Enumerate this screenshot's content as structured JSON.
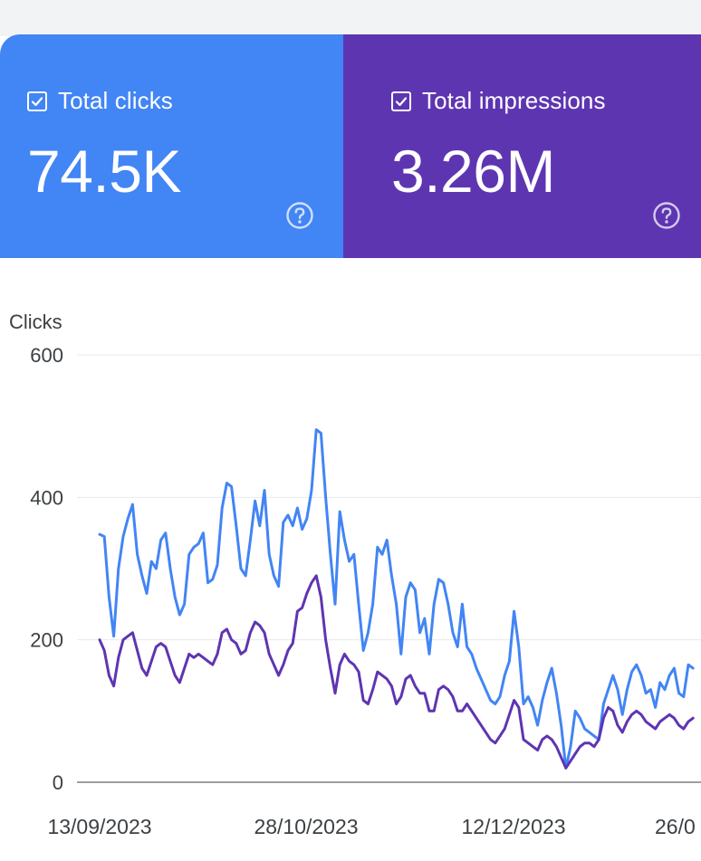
{
  "cards": [
    {
      "label": "Total clicks",
      "value": "74.5K",
      "color": "#4285f4"
    },
    {
      "label": "Total impressions",
      "value": "3.26M",
      "color": "#5e35b1"
    }
  ],
  "chart_data": {
    "type": "line",
    "ylabel": "Clicks",
    "ylim": [
      0,
      600
    ],
    "yticks": [
      "0",
      "200",
      "400",
      "600"
    ],
    "xticks": [
      "13/09/2023",
      "28/10/2023",
      "12/12/2023",
      "26/0"
    ],
    "series": [
      {
        "color": "#4285f4",
        "values": [
          348,
          345,
          260,
          205,
          300,
          345,
          370,
          390,
          320,
          290,
          265,
          310,
          300,
          340,
          350,
          300,
          260,
          235,
          250,
          320,
          330,
          335,
          350,
          280,
          285,
          305,
          385,
          420,
          415,
          360,
          300,
          290,
          340,
          395,
          360,
          410,
          320,
          290,
          275,
          365,
          375,
          360,
          385,
          355,
          370,
          410,
          495,
          490,
          400,
          320,
          250,
          380,
          340,
          310,
          320,
          250,
          185,
          210,
          250,
          330,
          320,
          340,
          290,
          250,
          180,
          260,
          280,
          270,
          210,
          230,
          180,
          250,
          285,
          280,
          250,
          210,
          190,
          250,
          190,
          180,
          160,
          145,
          130,
          115,
          110,
          120,
          150,
          170,
          240,
          190,
          110,
          120,
          105,
          80,
          115,
          140,
          160,
          125,
          80,
          20,
          50,
          100,
          90,
          75,
          70,
          65,
          60,
          110,
          130,
          150,
          130,
          95,
          130,
          155,
          165,
          150,
          125,
          130,
          105,
          140,
          130,
          150,
          160,
          125,
          120,
          165,
          160
        ]
      },
      {
        "color": "#5e35b1",
        "values": [
          200,
          185,
          150,
          135,
          175,
          200,
          205,
          210,
          185,
          160,
          150,
          170,
          190,
          195,
          190,
          170,
          150,
          140,
          160,
          180,
          175,
          180,
          175,
          170,
          165,
          180,
          210,
          215,
          200,
          195,
          180,
          185,
          210,
          225,
          220,
          210,
          180,
          165,
          150,
          165,
          185,
          195,
          240,
          245,
          265,
          280,
          290,
          260,
          200,
          160,
          125,
          165,
          180,
          170,
          165,
          155,
          115,
          110,
          130,
          155,
          150,
          145,
          135,
          110,
          120,
          145,
          150,
          135,
          125,
          125,
          100,
          100,
          130,
          135,
          130,
          120,
          100,
          100,
          110,
          100,
          90,
          80,
          70,
          60,
          55,
          65,
          75,
          95,
          115,
          105,
          60,
          55,
          50,
          45,
          60,
          65,
          60,
          50,
          35,
          20,
          30,
          40,
          50,
          55,
          55,
          50,
          60,
          90,
          105,
          100,
          80,
          70,
          85,
          95,
          100,
          95,
          85,
          80,
          75,
          85,
          90,
          95,
          90,
          80,
          75,
          85,
          90
        ]
      }
    ]
  }
}
